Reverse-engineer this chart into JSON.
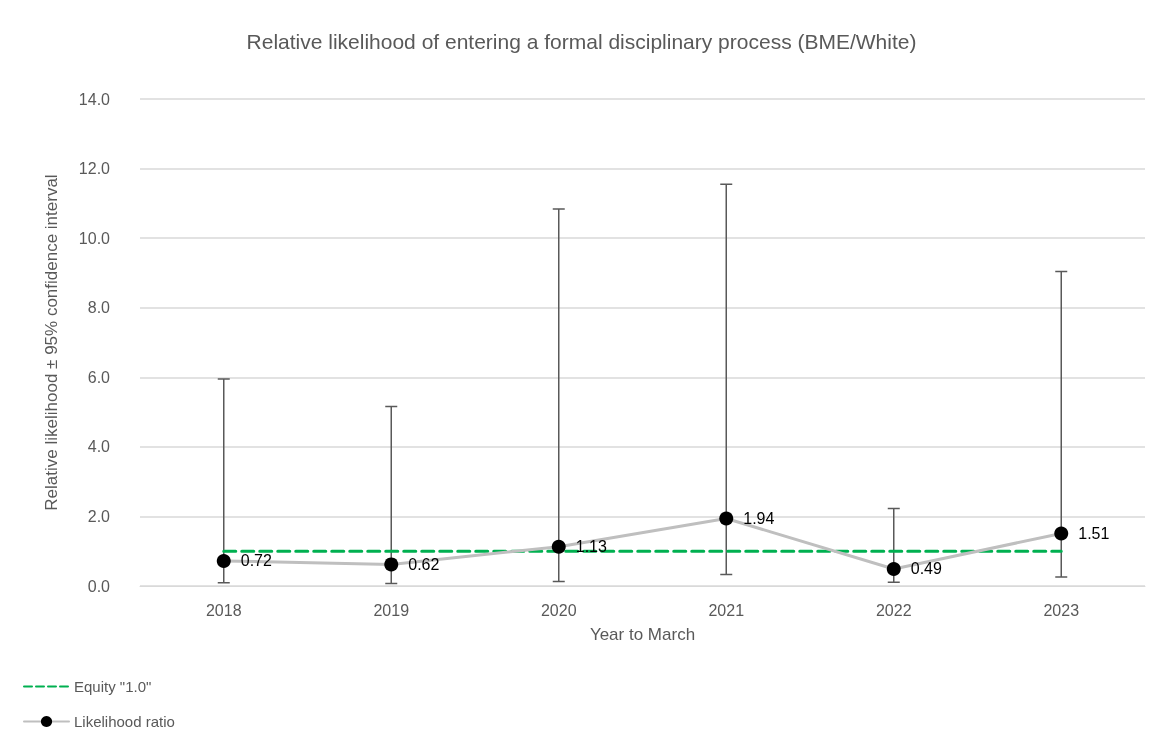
{
  "chart_data": {
    "type": "line",
    "title": "Relative likelihood of entering a formal disciplinary process (BME/White)",
    "xlabel": "Year to March",
    "ylabel": "Relative likelihood ± 95% confidence interval",
    "categories": [
      "2018",
      "2019",
      "2020",
      "2021",
      "2022",
      "2023"
    ],
    "series": [
      {
        "name": "Equity \"1.0\"",
        "color": "#00b050",
        "values": [
          1.0,
          1.0,
          1.0,
          1.0,
          1.0,
          1.0
        ],
        "line_style": "dashed",
        "marker": "none"
      },
      {
        "name": "Likelihood ratio",
        "color": "#bfbfbf",
        "values": [
          0.72,
          0.62,
          1.13,
          1.94,
          0.49,
          1.51
        ],
        "marker": "circle",
        "data_labels": true,
        "errors": [
          [
            0.09,
            5.95
          ],
          [
            0.07,
            5.16
          ],
          [
            0.13,
            10.84
          ],
          [
            0.33,
            11.55
          ],
          [
            0.11,
            2.23
          ],
          [
            0.26,
            9.04
          ]
        ]
      }
    ],
    "ylim": [
      0,
      14
    ],
    "yticks": [
      {
        "value": 0,
        "label": "0.0"
      },
      {
        "value": 2,
        "label": "2.0"
      },
      {
        "value": 4,
        "label": "4.0"
      },
      {
        "value": 6,
        "label": "6.0"
      },
      {
        "value": 8,
        "label": "8.0"
      },
      {
        "value": 10,
        "label": "10.0"
      },
      {
        "value": 12,
        "label": "12.0"
      },
      {
        "value": 14,
        "label": "14.0"
      }
    ],
    "grid": "y",
    "legend": "bottom left"
  }
}
